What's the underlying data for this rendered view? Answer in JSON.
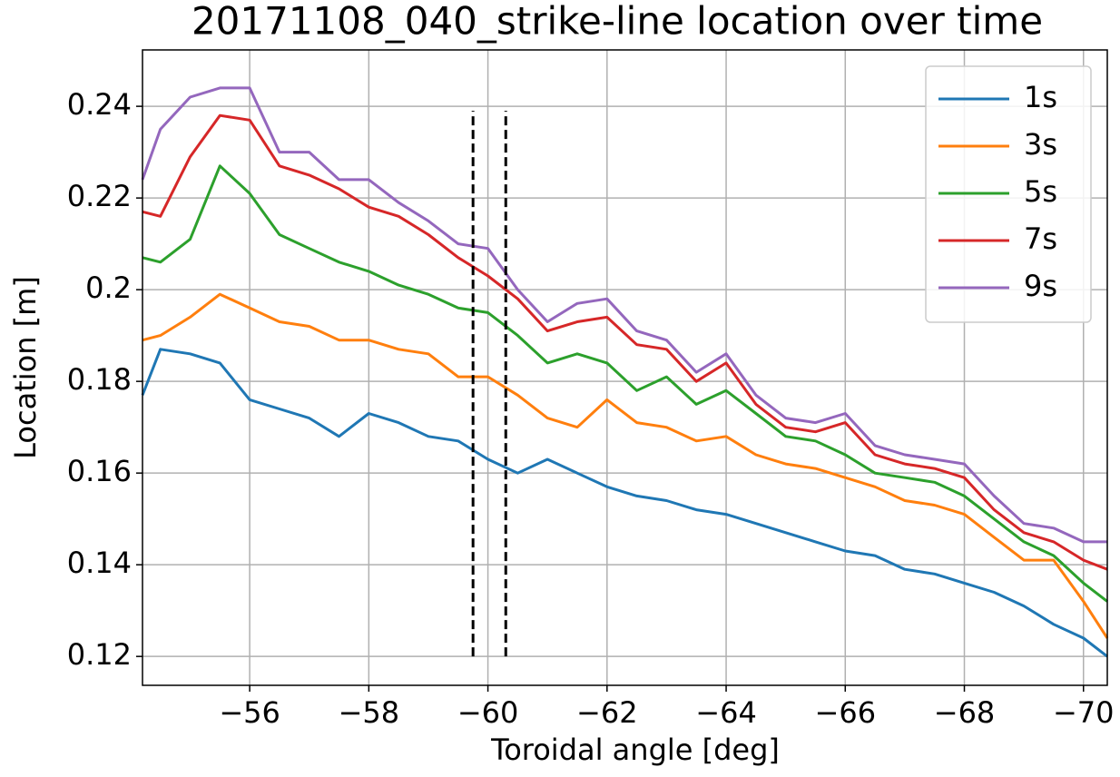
{
  "chart_data": {
    "type": "line",
    "title": "20171108_040_strike-line location over time",
    "xlabel": "Toroidal angle [deg]",
    "ylabel": "Location [m]",
    "xlim": [
      -54.2,
      -70.4
    ],
    "ylim": [
      0.1137,
      0.2523
    ],
    "xticks": [
      {
        "value": -56,
        "label": "−56"
      },
      {
        "value": -58,
        "label": "−58"
      },
      {
        "value": -60,
        "label": "−60"
      },
      {
        "value": -62,
        "label": "−62"
      },
      {
        "value": -64,
        "label": "−64"
      },
      {
        "value": -66,
        "label": "−66"
      },
      {
        "value": -68,
        "label": "−68"
      },
      {
        "value": -70,
        "label": "−70"
      }
    ],
    "yticks": [
      0.12,
      0.14,
      0.16,
      0.18,
      0.2,
      0.22,
      0.24
    ],
    "grid": true,
    "legend": "upper right",
    "vlines": {
      "x": [
        -59.75,
        -60.3
      ],
      "range": [
        0.12,
        0.239
      ],
      "color": "#000000"
    },
    "x": [
      -54.2,
      -54.5,
      -55,
      -55.5,
      -56,
      -56.5,
      -57,
      -57.5,
      -58,
      -58.5,
      -59,
      -59.5,
      -60,
      -60.5,
      -61,
      -61.5,
      -62,
      -62.5,
      -63,
      -63.5,
      -64,
      -64.5,
      -65,
      -65.5,
      -66,
      -66.5,
      -67,
      -67.5,
      -68,
      -68.5,
      -69,
      -69.5,
      -70,
      -70.4
    ],
    "series": [
      {
        "name": "1s",
        "color": "#1f77b4",
        "values": [
          0.177,
          0.187,
          0.186,
          0.184,
          0.176,
          0.174,
          0.172,
          0.168,
          0.173,
          0.171,
          0.168,
          0.167,
          0.163,
          0.16,
          0.163,
          0.16,
          0.157,
          0.155,
          0.154,
          0.152,
          0.151,
          0.149,
          0.147,
          0.145,
          0.143,
          0.142,
          0.139,
          0.138,
          0.136,
          0.134,
          0.131,
          0.127,
          0.124,
          0.12
        ]
      },
      {
        "name": "3s",
        "color": "#ff7f0e",
        "values": [
          0.189,
          0.19,
          0.194,
          0.199,
          0.196,
          0.193,
          0.192,
          0.189,
          0.189,
          0.187,
          0.186,
          0.181,
          0.181,
          0.177,
          0.172,
          0.17,
          0.176,
          0.171,
          0.17,
          0.167,
          0.168,
          0.164,
          0.162,
          0.161,
          0.159,
          0.157,
          0.154,
          0.153,
          0.151,
          0.146,
          0.141,
          0.141,
          0.132,
          0.124
        ]
      },
      {
        "name": "5s",
        "color": "#2ca02c",
        "values": [
          0.207,
          0.206,
          0.211,
          0.227,
          0.221,
          0.212,
          0.209,
          0.206,
          0.204,
          0.201,
          0.199,
          0.196,
          0.195,
          0.19,
          0.184,
          0.186,
          0.184,
          0.178,
          0.181,
          0.175,
          0.178,
          0.173,
          0.168,
          0.167,
          0.164,
          0.16,
          0.159,
          0.158,
          0.155,
          0.15,
          0.145,
          0.142,
          0.136,
          0.132
        ]
      },
      {
        "name": "7s",
        "color": "#d62728",
        "values": [
          0.217,
          0.216,
          0.229,
          0.238,
          0.237,
          0.227,
          0.225,
          0.222,
          0.218,
          0.216,
          0.212,
          0.207,
          0.203,
          0.198,
          0.191,
          0.193,
          0.194,
          0.188,
          0.187,
          0.18,
          0.184,
          0.175,
          0.17,
          0.169,
          0.171,
          0.164,
          0.162,
          0.161,
          0.159,
          0.152,
          0.147,
          0.145,
          0.141,
          0.139
        ]
      },
      {
        "name": "9s",
        "color": "#9467bd",
        "values": [
          0.224,
          0.235,
          0.242,
          0.244,
          0.244,
          0.23,
          0.23,
          0.224,
          0.224,
          0.219,
          0.215,
          0.21,
          0.209,
          0.2,
          0.193,
          0.197,
          0.198,
          0.191,
          0.189,
          0.182,
          0.186,
          0.177,
          0.172,
          0.171,
          0.173,
          0.166,
          0.164,
          0.163,
          0.162,
          0.155,
          0.149,
          0.148,
          0.145,
          0.145
        ]
      }
    ]
  }
}
